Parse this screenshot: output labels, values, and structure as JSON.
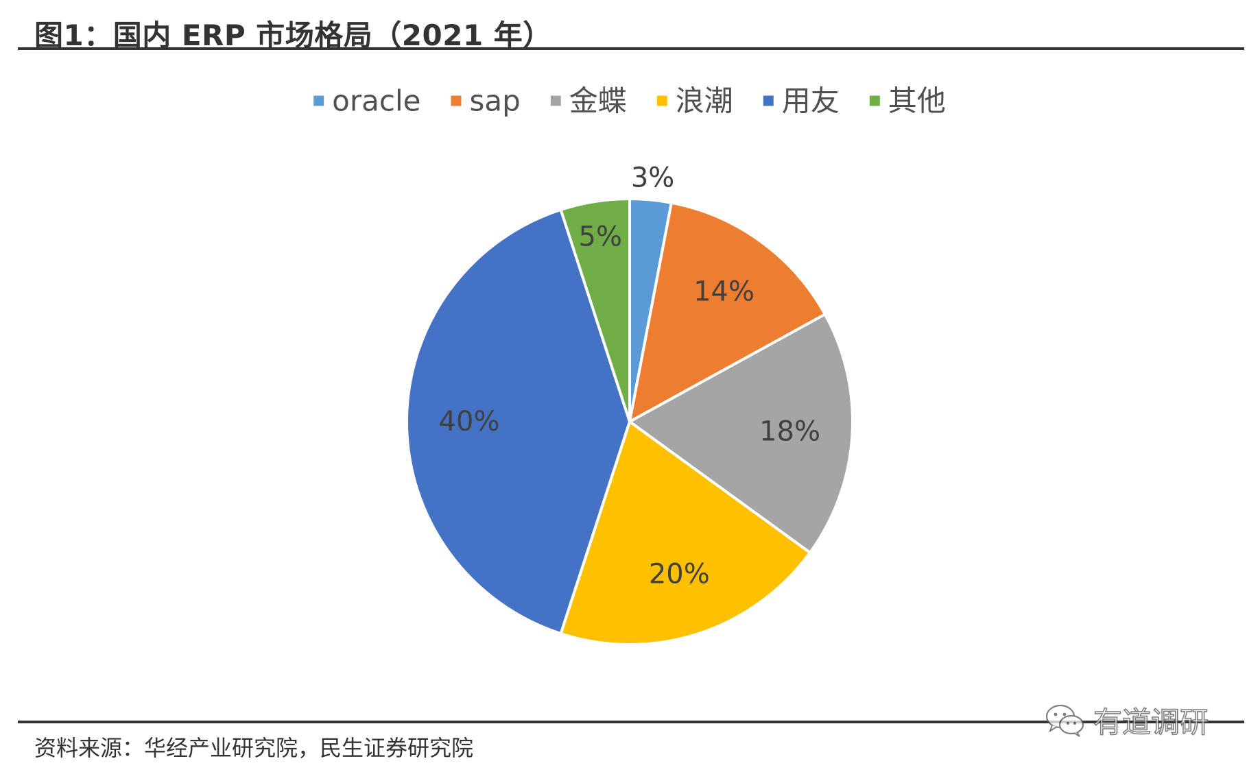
{
  "page": {
    "title": "图1：国内 ERP 市场格局（2021 年）",
    "source": "资料来源：华经产业研究院，民生证券研究院",
    "watermark": "有道调研",
    "watermark_icon": "wechat-icon"
  },
  "chart_data": {
    "type": "pie",
    "title": "",
    "legend_position": "top",
    "categories": [
      "oracle",
      "sap",
      "金蝶",
      "浪潮",
      "用友",
      "其他"
    ],
    "values": [
      3,
      14,
      18,
      20,
      40,
      5
    ],
    "labels": [
      "3%",
      "14%",
      "18%",
      "20%",
      "40%",
      "5%"
    ],
    "colors": [
      "#5B9BD5",
      "#ED7D31",
      "#A5A5A5",
      "#FFC000",
      "#4472C4",
      "#70AD47"
    ],
    "start": "12 o'clock",
    "direction": "clockwise",
    "slice_border_color": "#FFFFFF"
  }
}
